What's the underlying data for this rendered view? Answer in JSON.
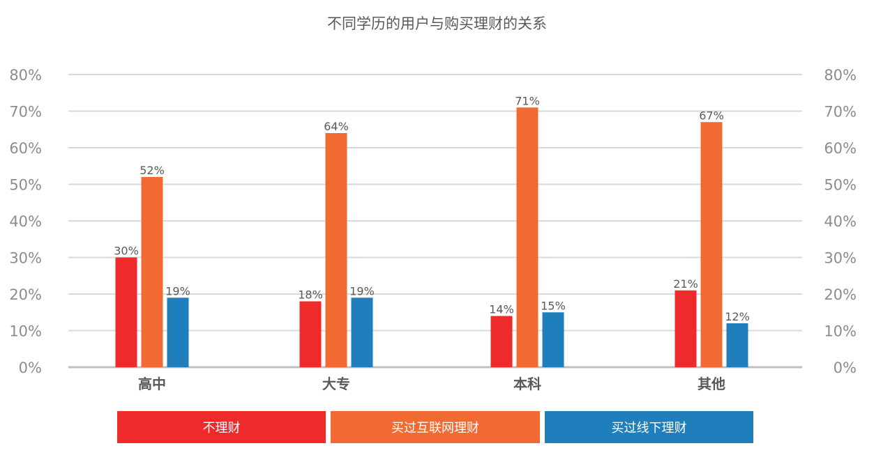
{
  "chart_data": {
    "type": "bar",
    "title": "不同学历的用户与购买理财的关系",
    "categories": [
      "高中",
      "大专",
      "本科",
      "其他"
    ],
    "series": [
      {
        "name": "不理财",
        "color": "#ee2a2a",
        "values": [
          30,
          18,
          14,
          21
        ]
      },
      {
        "name": "买过互联网理财",
        "color": "#f06a32",
        "values": [
          52,
          64,
          71,
          67
        ]
      },
      {
        "name": "买过线下理财",
        "color": "#1f7fbd",
        "values": [
          19,
          19,
          15,
          12
        ]
      }
    ],
    "data_labels": [
      [
        "30%",
        "18%",
        "14%",
        "21%"
      ],
      [
        "52%",
        "64%",
        "71%",
        "67%"
      ],
      [
        "19%",
        "19%",
        "15%",
        "12%"
      ]
    ],
    "ylim": [
      0,
      80
    ],
    "ytick_labels": [
      "0%",
      "10%",
      "20%",
      "30%",
      "40%",
      "50%",
      "60%",
      "70%",
      "80%"
    ],
    "secondary_y_axis": true,
    "grid": true,
    "legend_position": "bottom"
  }
}
